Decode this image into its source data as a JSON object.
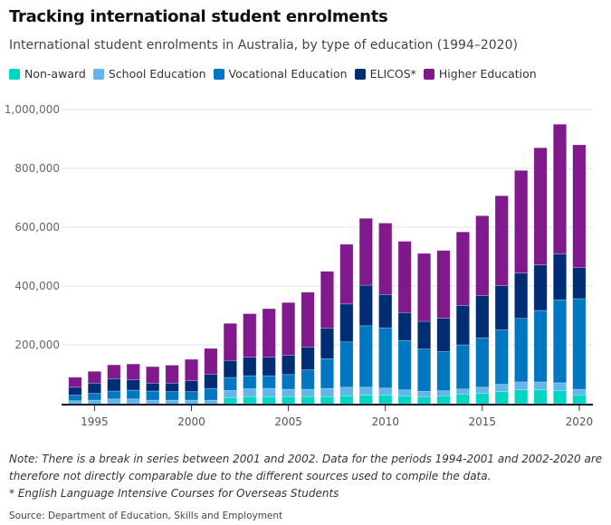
{
  "chart_data": {
    "type": "bar",
    "stacked": true,
    "title": "Tracking international student enrolments",
    "subtitle": "International student enrolments in Australia, by type of education (1994–2020)",
    "xlabel": "",
    "ylabel": "",
    "ylim": [
      0,
      1000000
    ],
    "yticks": [
      0,
      200000,
      400000,
      600000,
      800000,
      1000000
    ],
    "ytick_labels": [
      "",
      "200,000",
      "400,000",
      "600,000",
      "800,000",
      "1,000,000"
    ],
    "xticks": [
      "1995",
      "2000",
      "2005",
      "2010",
      "2015",
      "2020"
    ],
    "grid": true,
    "legend_position": "top-left",
    "categories": [
      1994,
      1995,
      1996,
      1997,
      1998,
      1999,
      2000,
      2001,
      2002,
      2003,
      2004,
      2005,
      2006,
      2007,
      2008,
      2009,
      2010,
      2011,
      2012,
      2013,
      2014,
      2015,
      2016,
      2017,
      2018,
      2019,
      2020
    ],
    "series": [
      {
        "name": "Non-award",
        "color": "#00d6c2",
        "values": [
          0,
          0,
          0,
          0,
          0,
          0,
          0,
          0,
          20000,
          24000,
          24000,
          24000,
          24000,
          24000,
          27000,
          29000,
          29000,
          27000,
          23000,
          27000,
          33000,
          36000,
          41000,
          47000,
          47000,
          45000,
          30000
        ]
      },
      {
        "name": "School Education",
        "color": "#62b6ea",
        "values": [
          10000,
          12000,
          16000,
          16000,
          12000,
          12000,
          12000,
          12000,
          25000,
          27000,
          28000,
          25000,
          25000,
          28000,
          29000,
          27000,
          24000,
          20000,
          19000,
          17000,
          17000,
          20000,
          25000,
          27000,
          27000,
          26000,
          19000
        ]
      },
      {
        "name": "Vocational Education",
        "color": "#0077c0",
        "values": [
          19000,
          23000,
          27000,
          30000,
          31000,
          29000,
          29000,
          40000,
          44000,
          44000,
          43000,
          50000,
          66000,
          101000,
          154000,
          209000,
          205000,
          168000,
          144000,
          133000,
          150000,
          168000,
          185000,
          216000,
          243000,
          282000,
          308000
        ]
      },
      {
        "name": "ELICOS*",
        "color": "#002d74",
        "values": [
          27000,
          35000,
          42000,
          36000,
          27000,
          29000,
          38000,
          48000,
          58000,
          63000,
          63000,
          66000,
          78000,
          104000,
          129000,
          138000,
          113000,
          95000,
          94000,
          114000,
          134000,
          143000,
          150000,
          154000,
          155000,
          156000,
          106000
        ]
      },
      {
        "name": "Higher Education",
        "color": "#80198c",
        "values": [
          34000,
          40000,
          47000,
          53000,
          56000,
          61000,
          72000,
          88000,
          126000,
          148000,
          165000,
          179000,
          186000,
          193000,
          203000,
          227000,
          243000,
          242000,
          231000,
          230000,
          250000,
          272000,
          306000,
          349000,
          398000,
          441000,
          417000
        ]
      }
    ]
  },
  "note": "Note: There is a break in series between 2001 and 2002. Data for the periods 1994-2001 and 2002-2020 are therefore not directly comparable due to the different sources used to compile the data.",
  "footnote": "* English Language Intensive Courses for Overseas Students",
  "source": "Source: Department of Education, Skills and Employment"
}
